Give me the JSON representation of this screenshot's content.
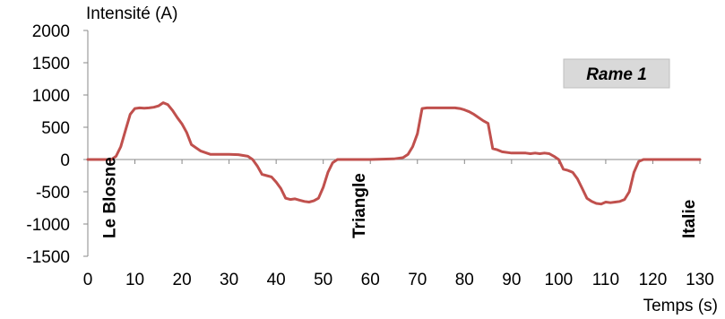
{
  "chart_data": {
    "type": "line",
    "title": "",
    "xlabel": "Temps (s)",
    "ylabel": "Intensité (A)",
    "xlim": [
      0,
      130
    ],
    "ylim": [
      -1500,
      2000
    ],
    "x_ticks": [
      0,
      10,
      20,
      30,
      40,
      50,
      60,
      70,
      80,
      90,
      100,
      110,
      120,
      130
    ],
    "y_ticks": [
      2000,
      1500,
      1000,
      500,
      0,
      -500,
      -1000,
      -1500
    ],
    "grid": false,
    "legend_position": "top-right",
    "line_color": "#c0504d",
    "legend_box_color": "#d9d9d9",
    "series": [
      {
        "name": "Rame 1",
        "x": [
          0,
          5,
          6,
          7,
          8,
          9,
          10,
          11,
          12,
          13,
          14,
          15,
          16,
          17,
          18,
          19,
          20,
          21,
          22,
          23,
          24,
          26,
          28,
          30,
          32,
          34,
          35,
          36,
          37,
          38,
          39,
          40,
          41,
          42,
          43,
          44,
          45,
          46,
          47,
          48,
          49,
          50,
          51,
          52,
          53,
          54,
          60,
          65,
          66,
          67,
          68,
          69,
          70,
          71,
          72,
          73,
          75,
          77,
          78,
          79,
          80,
          81,
          82,
          83,
          84,
          85,
          86,
          87,
          88,
          90,
          92,
          93,
          94,
          95,
          96,
          97,
          98,
          99,
          100,
          101,
          102,
          103,
          104,
          105,
          106,
          107,
          108,
          109,
          110,
          111,
          112,
          113,
          114,
          115,
          116,
          117,
          118,
          120,
          125,
          130
        ],
        "y": [
          0,
          0,
          50,
          200,
          450,
          700,
          790,
          800,
          795,
          800,
          810,
          830,
          880,
          850,
          760,
          650,
          550,
          420,
          230,
          180,
          130,
          80,
          80,
          80,
          75,
          50,
          0,
          -100,
          -230,
          -250,
          -270,
          -350,
          -450,
          -600,
          -620,
          -610,
          -630,
          -650,
          -660,
          -640,
          -600,
          -430,
          -200,
          -50,
          0,
          0,
          0,
          10,
          20,
          30,
          80,
          200,
          400,
          790,
          800,
          800,
          800,
          800,
          800,
          790,
          770,
          740,
          700,
          650,
          600,
          560,
          170,
          150,
          120,
          100,
          100,
          100,
          90,
          100,
          90,
          100,
          90,
          50,
          0,
          -150,
          -170,
          -200,
          -300,
          -450,
          -600,
          -650,
          -680,
          -690,
          -660,
          -670,
          -660,
          -650,
          -620,
          -500,
          -200,
          -30,
          0,
          0,
          0,
          0
        ]
      }
    ],
    "annotations": [
      {
        "text": "Le Blosne",
        "x": 4.5
      },
      {
        "text": "Triangle",
        "x": 57.5
      },
      {
        "text": "Italie",
        "x": 127.5
      }
    ]
  }
}
